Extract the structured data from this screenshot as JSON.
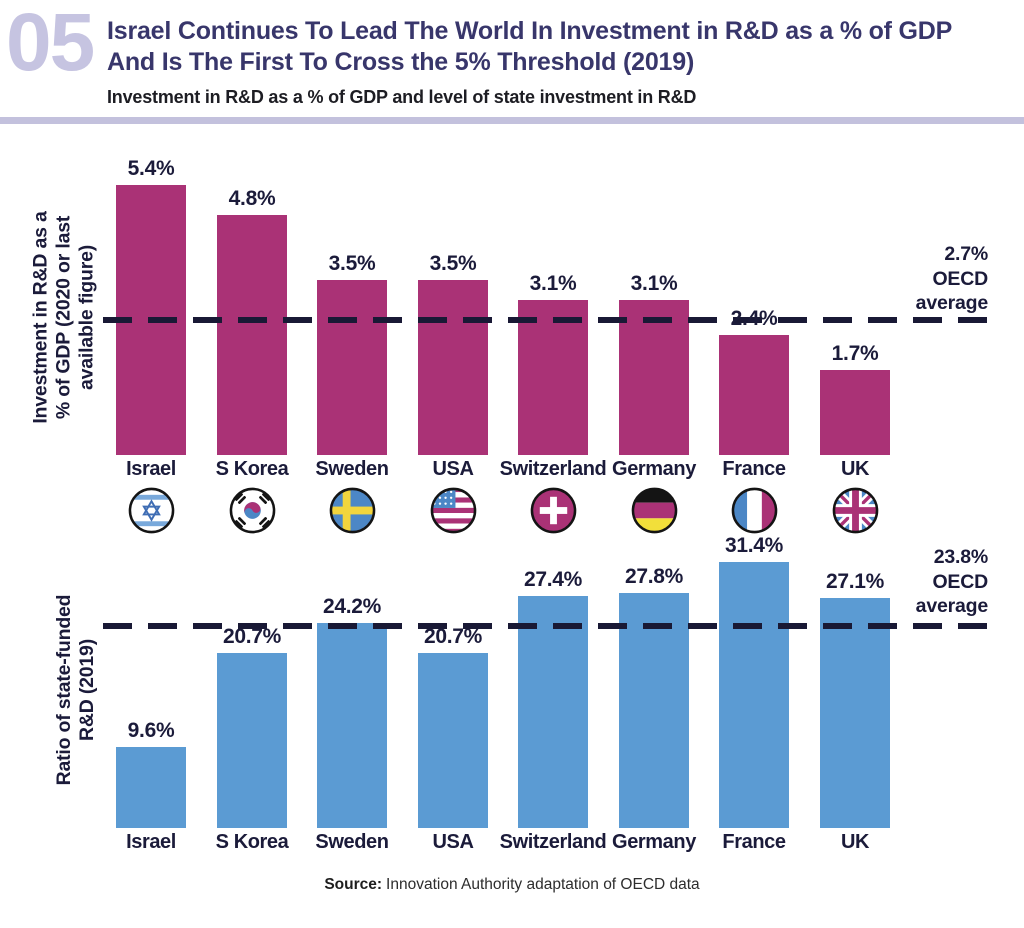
{
  "header": {
    "number": "05",
    "title_line1": "Israel Continues To Lead The World In Investment in R&D as a % of GDP",
    "title_line2": "And Is The First To Cross the 5% Threshold (2019)",
    "subtitle": "Investment in R&D as a % of GDP and level of state investment in R&D"
  },
  "countries": [
    {
      "id": "israel",
      "label": "Israel"
    },
    {
      "id": "skorea",
      "label": "S Korea"
    },
    {
      "id": "sweden",
      "label": "Sweden"
    },
    {
      "id": "usa",
      "label": "USA"
    },
    {
      "id": "switzerland",
      "label": "Switzerland"
    },
    {
      "id": "germany",
      "label": "Germany"
    },
    {
      "id": "france",
      "label": "France"
    },
    {
      "id": "uk",
      "label": "UK"
    }
  ],
  "chart_data": [
    {
      "type": "bar",
      "title": "Investment in R&D as a % of GDP (2020 or last available figure)",
      "axis_label_lines": [
        "Investment in R&D as a",
        "% of GDP (2020 or last",
        "available figure)"
      ],
      "categories": [
        "Israel",
        "S Korea",
        "Sweden",
        "USA",
        "Switzerland",
        "Germany",
        "France",
        "UK"
      ],
      "values": [
        5.4,
        4.8,
        3.5,
        3.5,
        3.1,
        3.1,
        2.4,
        1.7
      ],
      "labels": [
        "5.4%",
        "4.8%",
        "3.5%",
        "3.5%",
        "3.1%",
        "3.1%",
        "2.4%",
        "1.7%"
      ],
      "average_line": {
        "value": 2.7,
        "label_lines": [
          "2.7%",
          "OECD",
          "average"
        ]
      },
      "bar_color": "#aa3276",
      "ylim": [
        0,
        5.6
      ],
      "unit": "%",
      "grid": false,
      "legend": "none"
    },
    {
      "type": "bar",
      "title": "Ratio of state-funded R&D (2019)",
      "axis_label_lines": [
        "Ratio of state-funded",
        "R&D (2019)"
      ],
      "categories": [
        "Israel",
        "S Korea",
        "Sweden",
        "USA",
        "Switzerland",
        "Germany",
        "France",
        "UK"
      ],
      "values": [
        9.6,
        20.7,
        24.2,
        20.7,
        27.4,
        27.8,
        31.4,
        27.1
      ],
      "labels": [
        "9.6%",
        "20.7%",
        "24.2%",
        "20.7%",
        "27.4%",
        "27.8%",
        "31.4%",
        "27.1%"
      ],
      "average_line": {
        "value": 23.8,
        "label_lines": [
          "23.8%",
          "OECD",
          "average"
        ]
      },
      "bar_color": "#5b9bd3",
      "ylim": [
        0,
        33
      ],
      "unit": "%",
      "grid": false,
      "legend": "none"
    }
  ],
  "source": {
    "prefix": "Source:",
    "text": "Innovation Authority adaptation of OECD data"
  },
  "colors": {
    "bar_magenta": "#aa3276",
    "bar_blue": "#5b9bd3",
    "text_navy": "#1b1b3a",
    "title_indigo": "#38366b",
    "number_lavender": "#c6c4e1",
    "divider_lavender": "#c3c1dd",
    "dash_navy": "#191935"
  }
}
